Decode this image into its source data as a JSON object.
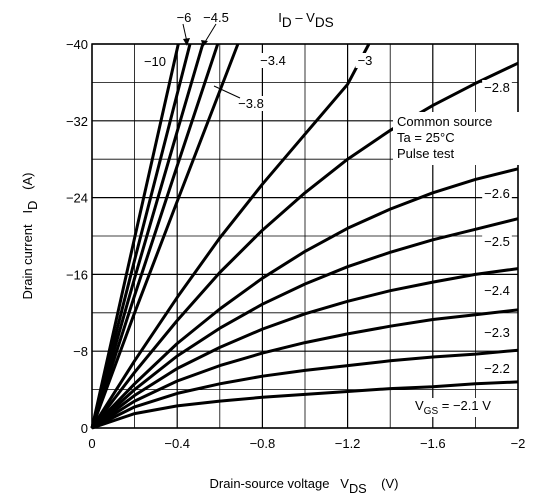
{
  "chart_data": {
    "type": "line",
    "title": [
      "I",
      "D",
      " – V",
      "DS"
    ],
    "x_label": [
      "Drain-source voltage   V",
      "DS",
      "    (V)"
    ],
    "y_label": [
      "Drain current   I",
      "D",
      "   (A)"
    ],
    "xlim": [
      0,
      -2
    ],
    "ylim": [
      0,
      -40
    ],
    "xticks": [
      0,
      {
        "value": -0.4,
        "label": "−0.4"
      },
      {
        "value": -0.8,
        "label": "−0.8"
      },
      {
        "value": -1.2,
        "label": "−1.2"
      },
      {
        "value": -1.6,
        "label": "−1.6"
      },
      {
        "value": -2,
        "label": "−2"
      }
    ],
    "yticks": [
      0,
      {
        "value": -8,
        "label": "−8"
      },
      {
        "value": -16,
        "label": "−16"
      },
      {
        "value": -24,
        "label": "−24"
      },
      {
        "value": -32,
        "label": "−32"
      },
      {
        "value": -40,
        "label": "−40"
      }
    ],
    "xgrid": [
      -0.2,
      -0.6,
      -1.0,
      -1.4,
      -1.8
    ],
    "ygrid": [
      -4,
      -12,
      -20,
      -28,
      -36
    ],
    "grid": true,
    "color": "#000000",
    "annotation": [
      "Common source",
      "Ta = 25°C",
      "Pulse test"
    ],
    "legend_prefix": [
      "V",
      "GS",
      " = "
    ],
    "series": [
      {
        "name": "−2.1 V",
        "x": [
          0,
          -0.2,
          -0.4,
          -0.6,
          -0.8,
          -1.0,
          -1.2,
          -1.4,
          -1.6,
          -1.8,
          -2.0
        ],
        "values": [
          0,
          -1.5,
          -2.3,
          -2.8,
          -3.2,
          -3.5,
          -3.8,
          -4.1,
          -4.3,
          -4.6,
          -4.8
        ]
      },
      {
        "name": "−2.2",
        "x": [
          0,
          -0.2,
          -0.4,
          -0.6,
          -0.8,
          -1.0,
          -1.2,
          -1.4,
          -1.6,
          -1.8,
          -2.0
        ],
        "values": [
          0,
          -2.2,
          -3.6,
          -4.6,
          -5.4,
          -6.0,
          -6.5,
          -7.0,
          -7.4,
          -7.7,
          -8.1
        ]
      },
      {
        "name": "−2.3",
        "x": [
          0,
          -0.2,
          -0.4,
          -0.6,
          -0.8,
          -1.0,
          -1.2,
          -1.4,
          -1.6,
          -1.8,
          -2.0
        ],
        "values": [
          0,
          -2.8,
          -4.9,
          -6.5,
          -7.8,
          -8.9,
          -9.8,
          -10.6,
          -11.3,
          -11.8,
          -12.3
        ]
      },
      {
        "name": "−2.4",
        "x": [
          0,
          -0.2,
          -0.4,
          -0.6,
          -0.8,
          -1.0,
          -1.2,
          -1.4,
          -1.6,
          -1.8,
          -2.0
        ],
        "values": [
          0,
          -3.4,
          -6.2,
          -8.4,
          -10.3,
          -11.9,
          -13.2,
          -14.3,
          -15.2,
          -16.0,
          -16.6
        ]
      },
      {
        "name": "−2.5",
        "x": [
          0,
          -0.2,
          -0.4,
          -0.6,
          -0.8,
          -1.0,
          -1.2,
          -1.4,
          -1.6,
          -1.8,
          -2.0
        ],
        "values": [
          0,
          -4.0,
          -7.5,
          -10.4,
          -12.9,
          -15.0,
          -16.8,
          -18.3,
          -19.6,
          -20.7,
          -21.8
        ]
      },
      {
        "name": "−2.6",
        "x": [
          0,
          -0.2,
          -0.4,
          -0.6,
          -0.8,
          -1.0,
          -1.2,
          -1.4,
          -1.6,
          -1.8,
          -2.0
        ],
        "values": [
          0,
          -4.6,
          -8.8,
          -12.4,
          -15.6,
          -18.4,
          -20.8,
          -22.8,
          -24.5,
          -25.9,
          -27.0
        ]
      },
      {
        "name": "−2.8",
        "x": [
          0,
          -0.2,
          -0.4,
          -0.6,
          -0.8,
          -1.0,
          -1.2,
          -1.4,
          -1.6,
          -1.8,
          -2.0
        ],
        "values": [
          0,
          -5.8,
          -11.2,
          -16.2,
          -20.6,
          -24.5,
          -28.0,
          -31.0,
          -33.6,
          -35.9,
          -38.0
        ]
      },
      {
        "name": "−3",
        "x": [
          0,
          -0.2,
          -0.4,
          -0.6,
          -0.8,
          -1.0,
          -1.2,
          -1.3
        ],
        "values": [
          0,
          -7.0,
          -13.6,
          -19.8,
          -25.4,
          -30.6,
          -35.8,
          -40
        ]
      },
      {
        "name": "−3.4",
        "x": [
          0,
          -0.2,
          -0.4,
          -0.6,
          -0.685
        ],
        "values": [
          0,
          -12.0,
          -23.6,
          -35.1,
          -40
        ]
      },
      {
        "name": "−3.8",
        "x": [
          0,
          -0.2,
          -0.4,
          -0.59
        ],
        "values": [
          0,
          -13.8,
          -27.3,
          -40
        ]
      },
      {
        "name": "−4.5",
        "x": [
          0,
          -0.2,
          -0.4,
          -0.52
        ],
        "values": [
          0,
          -15.6,
          -30.9,
          -40
        ]
      },
      {
        "name": "−6",
        "x": [
          0,
          -0.2,
          -0.46
        ],
        "values": [
          0,
          -17.5,
          -40
        ]
      },
      {
        "name": "−10",
        "x": [
          0,
          -0.2,
          -0.405
        ],
        "values": [
          0,
          -19.8,
          -40
        ]
      }
    ]
  }
}
